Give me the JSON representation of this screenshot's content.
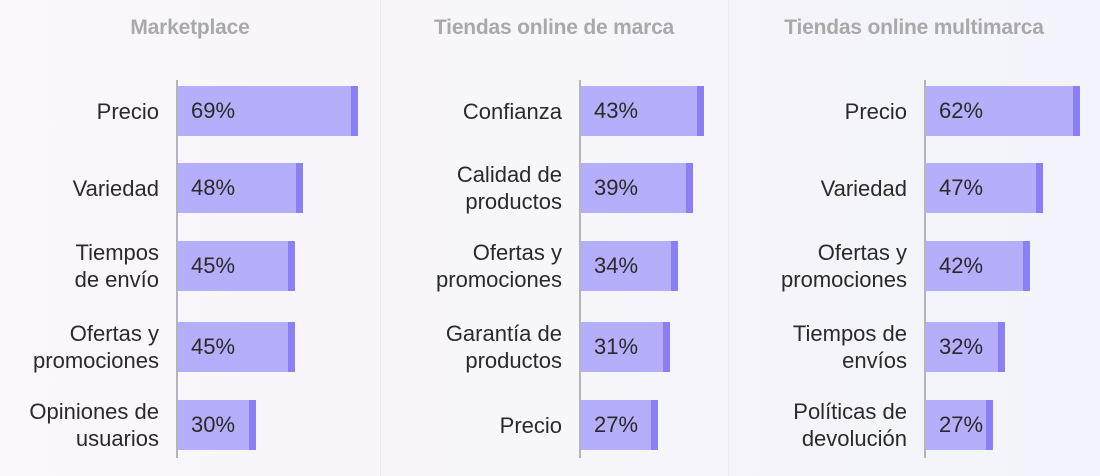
{
  "chart_data": [
    {
      "type": "bar",
      "orientation": "horizontal",
      "title": "Marketplace",
      "categories": [
        "Precio",
        "Variedad",
        "Tiempos\nde envío",
        "Ofertas y\npromociones",
        "Opiniones de\nusuarios"
      ],
      "values": [
        69,
        48,
        45,
        45,
        30
      ],
      "value_labels": [
        "69%",
        "48%",
        "45%",
        "45%",
        "30%"
      ],
      "unit": "%",
      "grid": false,
      "legend": "none"
    },
    {
      "type": "bar",
      "orientation": "horizontal",
      "title": "Tiendas online de marca",
      "categories": [
        "Confianza",
        "Calidad de\nproductos",
        "Ofertas y\npromociones",
        "Garantía de\nproductos",
        "Precio"
      ],
      "values": [
        43,
        39,
        34,
        31,
        27
      ],
      "value_labels": [
        "43%",
        "39%",
        "34%",
        "31%",
        "27%"
      ],
      "unit": "%",
      "grid": false,
      "legend": "none"
    },
    {
      "type": "bar",
      "orientation": "horizontal",
      "title": "Tiendas online multimarca",
      "categories": [
        "Precio",
        "Variedad",
        "Ofertas y\npromociones",
        "Tiempos de\nenvíos",
        "Políticas de\ndevolución"
      ],
      "values": [
        62,
        47,
        42,
        32,
        27
      ],
      "value_labels": [
        "62%",
        "47%",
        "42%",
        "32%",
        "27%"
      ],
      "unit": "%",
      "grid": false,
      "legend": "none"
    }
  ],
  "colors": {
    "bar_fill": "#b4aefb",
    "bar_cap": "#8a7ff4",
    "title": "#a9a9a9",
    "axis": "#b4b4bf",
    "text": "#2a2a2a"
  }
}
